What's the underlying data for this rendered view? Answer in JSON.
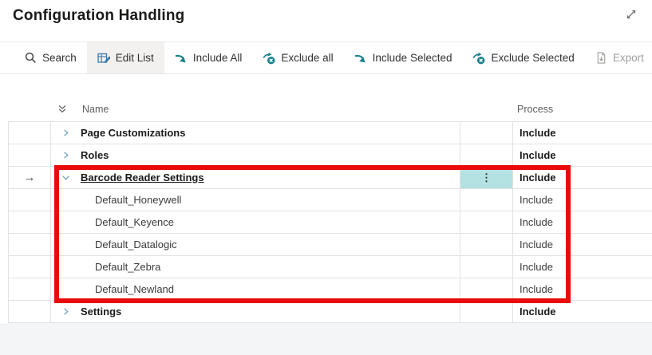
{
  "page": {
    "title": "Configuration Handling"
  },
  "toolbar": {
    "items": [
      {
        "label": "Search",
        "icon": "search-icon",
        "state": "normal"
      },
      {
        "label": "Edit List",
        "icon": "edit-list-icon",
        "state": "active"
      },
      {
        "label": "Include All",
        "icon": "include-arrow-icon",
        "state": "normal"
      },
      {
        "label": "Exclude all",
        "icon": "exclude-arrow-icon",
        "state": "normal"
      },
      {
        "label": "Include Selected",
        "icon": "include-arrow-icon",
        "state": "normal"
      },
      {
        "label": "Exclude Selected",
        "icon": "exclude-arrow-icon",
        "state": "normal"
      },
      {
        "label": "Export",
        "icon": "export-icon",
        "state": "disabled"
      },
      {
        "label": "···",
        "icon": "more-options-icon",
        "state": "normal"
      }
    ]
  },
  "table": {
    "columns": {
      "name": "Name",
      "process": "Process"
    },
    "rows": [
      {
        "name": "Page Customizations",
        "process": "Include",
        "level": 0,
        "bold": true,
        "chevron": "collapsed"
      },
      {
        "name": "Roles",
        "process": "Include",
        "level": 0,
        "bold": true,
        "chevron": "collapsed"
      },
      {
        "name": "Barcode Reader Settings",
        "process": "Include",
        "level": 0,
        "bold": true,
        "chevron": "expanded",
        "current": true,
        "underline": true,
        "menu_dots": true
      },
      {
        "name": "Default_Honeywell",
        "process": "Include",
        "level": 1,
        "bold": false
      },
      {
        "name": "Default_Keyence",
        "process": "Include",
        "level": 1,
        "bold": false
      },
      {
        "name": "Default_Datalogic",
        "process": "Include",
        "level": 1,
        "bold": false
      },
      {
        "name": "Default_Zebra",
        "process": "Include",
        "level": 1,
        "bold": false
      },
      {
        "name": "Default_Newland",
        "process": "Include",
        "level": 1,
        "bold": false
      },
      {
        "name": "Settings",
        "process": "Include",
        "level": 0,
        "bold": true,
        "chevron": "collapsed"
      }
    ]
  },
  "colors": {
    "accent_teal": "#17808a",
    "edit_icon_blue": "#3878aa",
    "chevron_blue": "#74a2c5",
    "annotation_red": "#ea0a0a",
    "menu_cell_highlight": "#b4e2e2",
    "disabled_gray": "#a19f9d",
    "footer_gray": "#f4f5f6"
  }
}
